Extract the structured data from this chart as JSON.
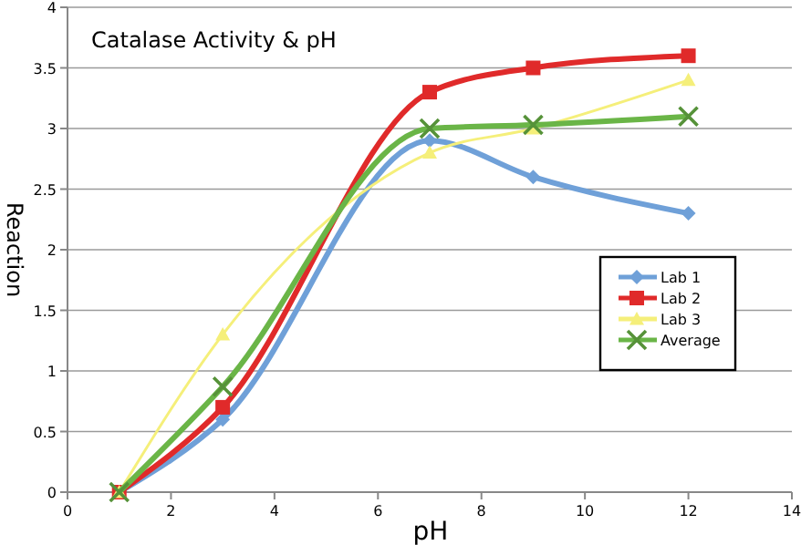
{
  "chart_data": {
    "type": "line",
    "title": "Catalase Activity & pH",
    "xlabel": "pH",
    "ylabel": "Reaction",
    "x": [
      1,
      3,
      7,
      9,
      12
    ],
    "series": [
      {
        "name": "Lab 1",
        "color": "#6fa0d8",
        "values": [
          0,
          0.6,
          2.9,
          2.6,
          2.3
        ],
        "marker": "diamond"
      },
      {
        "name": "Lab 2",
        "color": "#e02a2a",
        "values": [
          0,
          0.7,
          3.3,
          3.5,
          3.6
        ],
        "marker": "square"
      },
      {
        "name": "Lab 3",
        "color": "#f5ef7a",
        "values": [
          0,
          1.3,
          2.8,
          3.0,
          3.4
        ],
        "marker": "triangle"
      },
      {
        "name": "Average",
        "color": "#6ab547",
        "values": [
          0,
          0.87,
          3.0,
          3.03,
          3.1
        ],
        "marker": "cross"
      }
    ],
    "xlim": [
      0,
      14
    ],
    "xticks": [
      0,
      2,
      4,
      6,
      8,
      10,
      12,
      14
    ],
    "ylim": [
      0,
      4
    ],
    "yticks": [
      0,
      0.5,
      1,
      1.5,
      2,
      2.5,
      3,
      3.5,
      4
    ],
    "grid": "y",
    "legend": "right",
    "line_style": "solid"
  }
}
